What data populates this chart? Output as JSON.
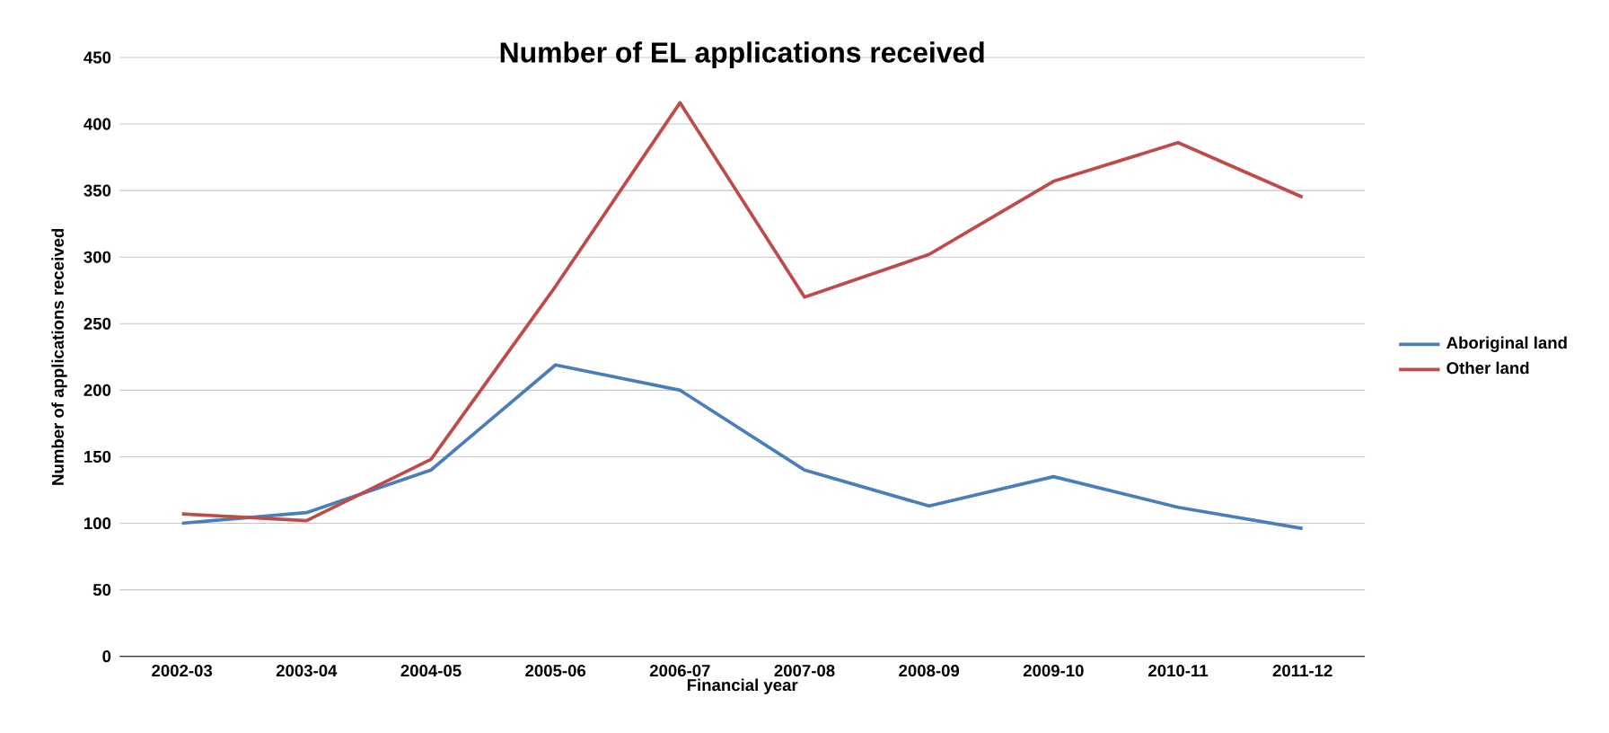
{
  "chart_data": {
    "type": "line",
    "title": "Number of EL applications received",
    "xlabel": "Financial year",
    "ylabel": "Number of applications received",
    "categories": [
      "2002-03",
      "2003-04",
      "2004-05",
      "2005-06",
      "2006-07",
      "2007-08",
      "2008-09",
      "2009-10",
      "2010-11",
      "2011-12"
    ],
    "series": [
      {
        "name": "Aboriginal  land",
        "color": "#4a7ebb",
        "values": [
          100,
          108,
          140,
          219,
          200,
          140,
          113,
          135,
          112,
          96
        ]
      },
      {
        "name": "Other land",
        "color": "#be4b48",
        "values": [
          107,
          102,
          148,
          278,
          416,
          270,
          302,
          357,
          386,
          345
        ]
      }
    ],
    "ylim": [
      0,
      450
    ],
    "yticks": [
      0,
      50,
      100,
      150,
      200,
      250,
      300,
      350,
      400,
      450
    ],
    "grid": "y",
    "legend": "right",
    "marker": "none",
    "line_style": "solid"
  }
}
